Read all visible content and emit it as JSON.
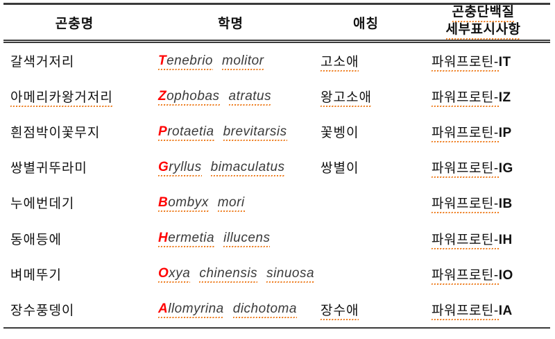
{
  "colors": {
    "first_letter_red": "#ff0000",
    "spellcheck_underline_orange": "#ee7d1f",
    "text_black": "#111111",
    "rule_line_dark": "#3a3a3a"
  },
  "table": {
    "columns": [
      {
        "label": "곤충명"
      },
      {
        "label": "학명"
      },
      {
        "label": "애칭"
      },
      {
        "label_line1": "곤충단백질",
        "label_line2": "세부표시사항"
      }
    ],
    "rows": [
      {
        "insect_name": "갈색거저리",
        "insect_name_underlined": false,
        "scientific_name": "Tenebrio molitor",
        "nickname": "고소애",
        "nickname_underlined": true,
        "label_prefix": "파워프로틴-",
        "label_suffix": "IT"
      },
      {
        "insect_name": "아메리카왕거저리",
        "insect_name_underlined": true,
        "scientific_name": "Zophobas atratus",
        "nickname": "왕고소애",
        "nickname_underlined": true,
        "label_prefix": "파워프로틴-",
        "label_suffix": "IZ"
      },
      {
        "insect_name": "흰점박이꽃무지",
        "insect_name_underlined": false,
        "scientific_name": "Protaetia brevitarsis",
        "nickname": "꽃벵이",
        "nickname_underlined": false,
        "label_prefix": "파워프로틴-",
        "label_suffix": "IP"
      },
      {
        "insect_name": "쌍별귀뚜라미",
        "insect_name_underlined": false,
        "scientific_name": "Gryllus bimaculatus",
        "nickname": "쌍별이",
        "nickname_underlined": false,
        "label_prefix": "파워프로틴-",
        "label_suffix": "IG"
      },
      {
        "insect_name": "누에번데기",
        "insect_name_underlined": false,
        "scientific_name": "Bombyx mori",
        "nickname": "",
        "nickname_underlined": false,
        "label_prefix": "파워프로틴-",
        "label_suffix": "IB"
      },
      {
        "insect_name": "동애등에",
        "insect_name_underlined": false,
        "scientific_name": "Hermetia illucens",
        "nickname": "",
        "nickname_underlined": false,
        "label_prefix": "파워프로틴-",
        "label_suffix": "IH"
      },
      {
        "insect_name": "벼메뚜기",
        "insect_name_underlined": false,
        "scientific_name": "Oxya chinensis sinuosa",
        "nickname": "",
        "nickname_underlined": false,
        "label_prefix": "파워프로틴-",
        "label_suffix": "IO"
      },
      {
        "insect_name": "장수풍뎅이",
        "insect_name_underlined": false,
        "scientific_name": "Allomyrina dichotoma",
        "nickname": "장수애",
        "nickname_underlined": true,
        "label_prefix": "파워프로틴-",
        "label_suffix": "IA"
      }
    ]
  }
}
